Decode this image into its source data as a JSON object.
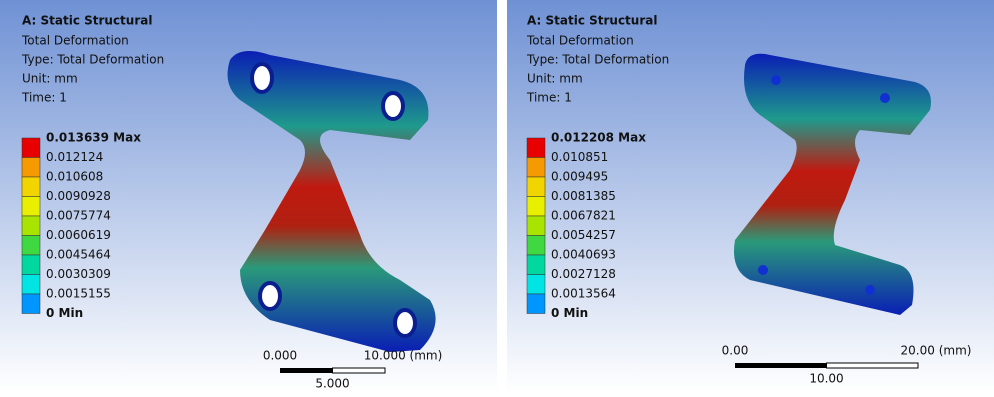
{
  "panels": [
    {
      "title": "A: Static Structural",
      "lines": [
        "Total Deformation",
        "Type: Total Deformation",
        "Unit: mm",
        "Time: 1"
      ],
      "legend": {
        "max": "0.013639 Max",
        "levels": [
          "0.012124",
          "0.010608",
          "0.0090928",
          "0.0075774",
          "0.0060619",
          "0.0045464",
          "0.0030309",
          "0.0015155"
        ],
        "min": "0 Min"
      },
      "scale": {
        "start": "0.000",
        "end": "10.000 (mm)",
        "mid": "5.000"
      }
    },
    {
      "title": "A: Static Structural",
      "lines": [
        "Total Deformation",
        "Type: Total Deformation",
        "Unit: mm",
        "Time: 1"
      ],
      "legend": {
        "max": "0.012208 Max",
        "levels": [
          "0.010851",
          "0.009495",
          "0.0081385",
          "0.0067821",
          "0.0054257",
          "0.0040693",
          "0.0027128",
          "0.0013564"
        ],
        "min": "0 Min"
      },
      "scale": {
        "start": "0.00",
        "end": "20.00 (mm)",
        "mid": "10.00"
      }
    }
  ]
}
